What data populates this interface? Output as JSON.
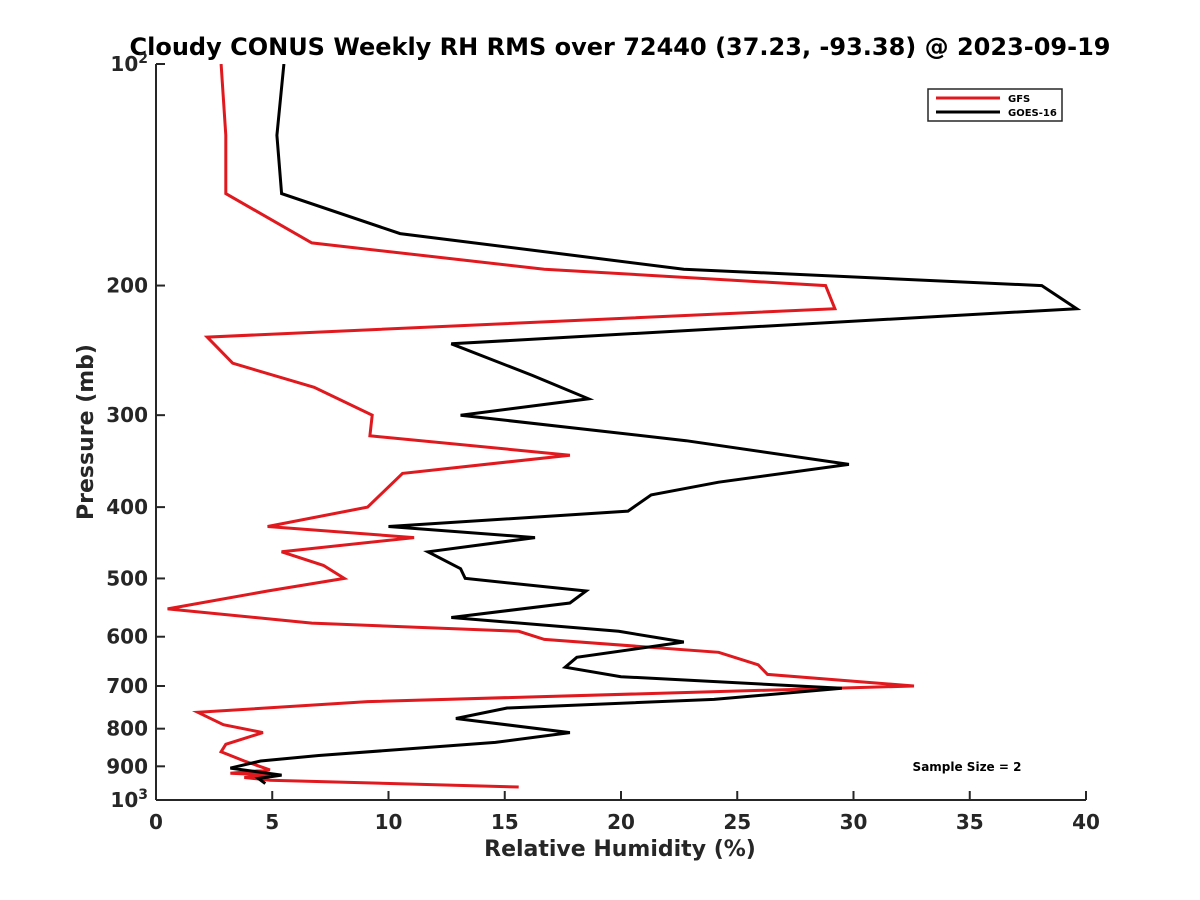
{
  "chart_data": {
    "type": "line",
    "title": "Cloudy CONUS Weekly RH RMS over 72440 (37.23, -93.38) @ 2023-09-19",
    "xlabel": "Relative Humidity (%)",
    "ylabel": "Pressure (mb)",
    "xlim": [
      0,
      40
    ],
    "ylim": [
      100,
      1000
    ],
    "y_scale": "log",
    "y_reversed": true,
    "grid": false,
    "legend_position": "top-right",
    "x_ticks": [
      "0",
      "5",
      "10",
      "15",
      "20",
      "25",
      "30",
      "35",
      "40"
    ],
    "y_ticks": [
      {
        "value": 100,
        "base": "10",
        "exp": "2"
      },
      {
        "value": 200,
        "base": "200",
        "exp": ""
      },
      {
        "value": 300,
        "base": "300",
        "exp": ""
      },
      {
        "value": 400,
        "base": "400",
        "exp": ""
      },
      {
        "value": 500,
        "base": "500",
        "exp": ""
      },
      {
        "value": 600,
        "base": "600",
        "exp": ""
      },
      {
        "value": 700,
        "base": "700",
        "exp": ""
      },
      {
        "value": 800,
        "base": "800",
        "exp": ""
      },
      {
        "value": 900,
        "base": "900",
        "exp": ""
      },
      {
        "value": 1000,
        "base": "10",
        "exp": "3"
      }
    ],
    "annotation": "Sample Size = 2",
    "series": [
      {
        "name": "GFS",
        "color": "#e0191f",
        "points": [
          [
            2.8,
            100
          ],
          [
            3.0,
            125
          ],
          [
            3.0,
            150
          ],
          [
            6.7,
            175
          ],
          [
            16.7,
            190
          ],
          [
            28.8,
            200
          ],
          [
            29.2,
            215
          ],
          [
            2.2,
            235
          ],
          [
            3.3,
            255
          ],
          [
            6.8,
            275
          ],
          [
            9.3,
            300
          ],
          [
            9.2,
            320
          ],
          [
            17.8,
            340
          ],
          [
            10.6,
            360
          ],
          [
            9.1,
            400
          ],
          [
            4.8,
            425
          ],
          [
            11.1,
            440
          ],
          [
            5.4,
            460
          ],
          [
            7.2,
            480
          ],
          [
            8.1,
            500
          ],
          [
            4.8,
            520
          ],
          [
            0.5,
            550
          ],
          [
            6.7,
            575
          ],
          [
            15.6,
            590
          ],
          [
            16.7,
            605
          ],
          [
            24.2,
            630
          ],
          [
            25.9,
            655
          ],
          [
            26.3,
            675
          ],
          [
            32.6,
            700
          ],
          [
            9.1,
            735
          ],
          [
            1.8,
            760
          ],
          [
            2.9,
            790
          ],
          [
            4.6,
            810
          ],
          [
            3.0,
            840
          ],
          [
            2.8,
            860
          ],
          [
            3.8,
            885
          ],
          [
            4.9,
            910
          ],
          [
            3.2,
            920
          ],
          [
            4.9,
            925
          ],
          [
            3.8,
            932
          ],
          [
            4.9,
            940
          ],
          [
            15.6,
            960
          ]
        ]
      },
      {
        "name": "GOES-16",
        "color": "#000000",
        "points": [
          [
            5.5,
            100
          ],
          [
            5.2,
            125
          ],
          [
            5.4,
            150
          ],
          [
            10.5,
            170
          ],
          [
            22.7,
            190
          ],
          [
            38.1,
            200
          ],
          [
            39.6,
            215
          ],
          [
            12.7,
            240
          ],
          [
            16.2,
            265
          ],
          [
            18.6,
            285
          ],
          [
            13.1,
            300
          ],
          [
            22.8,
            325
          ],
          [
            29.8,
            350
          ],
          [
            24.2,
            370
          ],
          [
            21.3,
            385
          ],
          [
            20.3,
            405
          ],
          [
            10.0,
            425
          ],
          [
            16.3,
            440
          ],
          [
            11.7,
            460
          ],
          [
            13.1,
            485
          ],
          [
            13.3,
            500
          ],
          [
            18.5,
            520
          ],
          [
            17.8,
            540
          ],
          [
            12.7,
            565
          ],
          [
            19.9,
            590
          ],
          [
            22.7,
            610
          ],
          [
            18.1,
            640
          ],
          [
            17.6,
            660
          ],
          [
            20.0,
            680
          ],
          [
            29.5,
            705
          ],
          [
            24.0,
            730
          ],
          [
            15.1,
            750
          ],
          [
            12.9,
            775
          ],
          [
            17.8,
            810
          ],
          [
            14.6,
            835
          ],
          [
            7.0,
            870
          ],
          [
            4.5,
            885
          ],
          [
            3.2,
            905
          ],
          [
            5.4,
            925
          ],
          [
            4.4,
            935
          ],
          [
            4.7,
            950
          ]
        ]
      }
    ]
  }
}
